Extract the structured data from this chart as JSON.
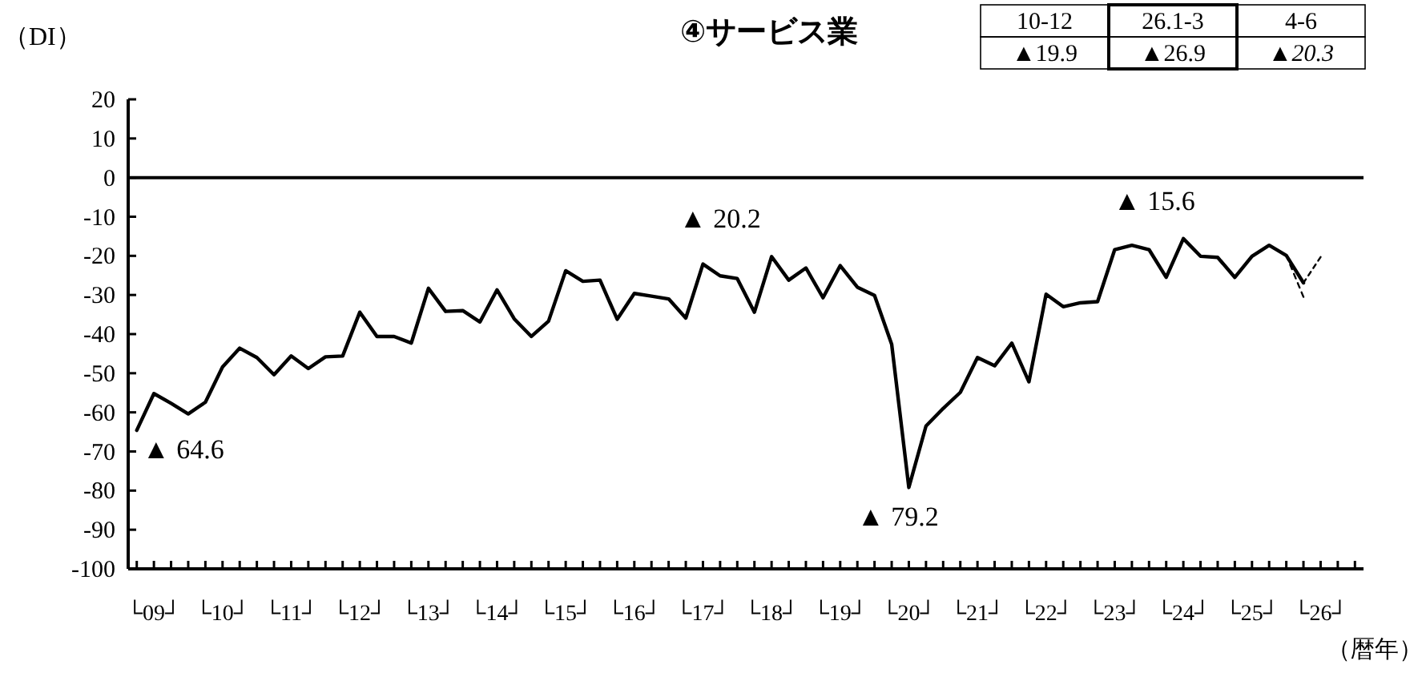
{
  "chart_data": {
    "type": "line",
    "title": "④サービス業",
    "ylabel": "（DI）",
    "xlabel": "（暦年）",
    "ylim": [
      -100,
      20
    ],
    "yticks": [
      20,
      10,
      0,
      -10,
      -20,
      -30,
      -40,
      -50,
      -60,
      -70,
      -80,
      -90,
      -100
    ],
    "categories": [
      null,
      "└09┘",
      null,
      null,
      null,
      "└10┘",
      null,
      null,
      null,
      "└11┘",
      null,
      null,
      null,
      "└12┘",
      null,
      null,
      null,
      "└13┘",
      null,
      null,
      null,
      "└14┘",
      null,
      null,
      null,
      "└15┘",
      null,
      null,
      null,
      "└16┘",
      null,
      null,
      null,
      "└17┘",
      null,
      null,
      null,
      "└18┘",
      null,
      null,
      null,
      "└19┘",
      null,
      null,
      null,
      "└20┘",
      null,
      null,
      null,
      "└21┘",
      null,
      null,
      null,
      "└22┘",
      null,
      null,
      null,
      "└23┘",
      null,
      null,
      null,
      "└24┘",
      null,
      null,
      null,
      "└25┘",
      null,
      null,
      null,
      "└26┘",
      null,
      null
    ],
    "series": [
      {
        "color": "#000000",
        "line_style": "solid",
        "values": [
          -64.6,
          -55.2,
          -57.7,
          -60.4,
          -57.4,
          -48.4,
          -43.6,
          -46.0,
          -50.4,
          -45.6,
          -48.8,
          -45.8,
          -45.6,
          -34.4,
          -40.6,
          -40.6,
          -42.3,
          -28.3,
          -34.2,
          -34.0,
          -36.9,
          -28.7,
          -36.1,
          -40.6,
          -36.7,
          -23.8,
          -26.5,
          -26.2,
          -36.2,
          -29.6,
          -30.3,
          -31.0,
          -35.9,
          -22.1,
          -25.1,
          -25.8,
          -34.4,
          -20.2,
          -26.2,
          -23.1,
          -30.7,
          -22.5,
          -28.0,
          -30.1,
          -42.6,
          -79.2,
          -63.5,
          -59.0,
          -54.9,
          -46.0,
          -48.1,
          -42.3,
          -52.2,
          -29.8,
          -33.0,
          -32.0,
          -31.7,
          -18.4,
          -17.3,
          -18.4,
          -25.5,
          -15.6,
          -20.1,
          -20.4,
          -25.5,
          -20.1,
          -17.3,
          -19.9,
          -26.9,
          null,
          null,
          null
        ]
      },
      {
        "color": "#000000",
        "line_style": "dashed",
        "values": [
          null,
          null,
          null,
          null,
          null,
          null,
          null,
          null,
          null,
          null,
          null,
          null,
          null,
          null,
          null,
          null,
          null,
          null,
          null,
          null,
          null,
          null,
          null,
          null,
          null,
          null,
          null,
          null,
          null,
          null,
          null,
          null,
          null,
          null,
          null,
          null,
          null,
          null,
          null,
          null,
          null,
          null,
          null,
          null,
          null,
          null,
          null,
          null,
          null,
          null,
          null,
          null,
          null,
          null,
          null,
          null,
          null,
          null,
          null,
          null,
          null,
          null,
          null,
          null,
          null,
          null,
          null,
          -19.9,
          -30.5,
          null,
          null,
          null
        ]
      },
      {
        "color": "#000000",
        "line_style": "dashed",
        "values": [
          null,
          null,
          null,
          null,
          null,
          null,
          null,
          null,
          null,
          null,
          null,
          null,
          null,
          null,
          null,
          null,
          null,
          null,
          null,
          null,
          null,
          null,
          null,
          null,
          null,
          null,
          null,
          null,
          null,
          null,
          null,
          null,
          null,
          null,
          null,
          null,
          null,
          null,
          null,
          null,
          null,
          null,
          null,
          null,
          null,
          null,
          null,
          null,
          null,
          null,
          null,
          null,
          null,
          null,
          null,
          null,
          null,
          null,
          null,
          null,
          null,
          null,
          null,
          null,
          null,
          null,
          null,
          null,
          -26.9,
          -20.3,
          null,
          null
        ]
      }
    ],
    "ref_lines": [
      {
        "axis": "y",
        "value": 0,
        "color": "#000000",
        "line_style": "solid"
      }
    ],
    "annotations": [
      "▲ 64.6",
      "▲ 20.2",
      "▲ 79.2",
      "▲ 15.6",
      "10-12",
      "26.1-3",
      "4-6",
      "▲19.9",
      "▲26.9",
      "▲20.3"
    ]
  }
}
